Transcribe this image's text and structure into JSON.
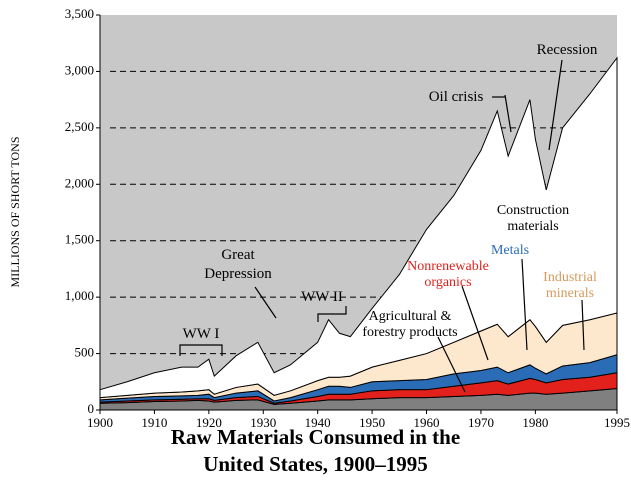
{
  "chart_data": {
    "type": "stacked_area",
    "title": [
      "Raw Materials Consumed in the",
      "United States, 1900–1995"
    ],
    "y_label": "MILLIONS OF SHORT TONS",
    "x": [
      1900,
      1905,
      1910,
      1915,
      1918,
      1920,
      1921,
      1925,
      1929,
      1932,
      1935,
      1940,
      1942,
      1944,
      1946,
      1950,
      1955,
      1960,
      1965,
      1970,
      1973,
      1975,
      1979,
      1980,
      1982,
      1985,
      1990,
      1995
    ],
    "series": [
      {
        "name": "Agricultural & forestry products",
        "color": "#808080",
        "values": [
          60,
          65,
          75,
          80,
          85,
          80,
          70,
          85,
          90,
          50,
          60,
          80,
          90,
          90,
          90,
          100,
          110,
          110,
          120,
          130,
          140,
          130,
          150,
          150,
          140,
          150,
          170,
          190
        ]
      },
      {
        "name": "Nonrenewable organics",
        "color": "#e3211c",
        "values": [
          10,
          15,
          15,
          15,
          15,
          20,
          15,
          25,
          30,
          10,
          20,
          40,
          50,
          50,
          50,
          70,
          70,
          70,
          90,
          110,
          120,
          100,
          130,
          120,
          100,
          120,
          120,
          140
        ]
      },
      {
        "name": "Metals",
        "color": "#2b6cb6",
        "values": [
          20,
          25,
          30,
          30,
          30,
          40,
          25,
          40,
          50,
          20,
          30,
          60,
          70,
          70,
          60,
          80,
          80,
          90,
          110,
          110,
          120,
          100,
          120,
          100,
          80,
          120,
          130,
          160
        ]
      },
      {
        "name": "Industrial minerals",
        "color": "#fde8cd",
        "values": [
          20,
          25,
          30,
          35,
          40,
          40,
          30,
          50,
          60,
          50,
          60,
          80,
          80,
          80,
          100,
          130,
          180,
          230,
          280,
          350,
          380,
          320,
          400,
          370,
          280,
          360,
          380,
          370
        ]
      },
      {
        "name": "Construction materials",
        "color": "#ffffff",
        "values": [
          70,
          120,
          180,
          220,
          210,
          270,
          160,
          280,
          370,
          200,
          230,
          340,
          510,
          390,
          350,
          520,
          760,
          1100,
          1300,
          1600,
          1890,
          1600,
          1950,
          1660,
          1350,
          1750,
          2000,
          2260
        ]
      }
    ],
    "annotations": [
      "Recession",
      "Oil crisis",
      "Great Depression",
      "WW I",
      "WW II"
    ],
    "xlim": [
      1900,
      1995
    ],
    "xticks": [
      1900,
      1910,
      1920,
      1930,
      1940,
      1950,
      1960,
      1970,
      1980,
      1995
    ],
    "ylim": [
      0,
      3500
    ],
    "yticks": [
      0,
      500,
      {
        "value": 1000,
        "label": "1,000"
      },
      {
        "value": 1500,
        "label": "1,500"
      },
      {
        "value": 2000,
        "label": "2,000"
      },
      {
        "value": 2500,
        "label": "2,500"
      },
      {
        "value": 3000,
        "label": "3,000"
      },
      {
        "value": 3500,
        "label": "3,500"
      }
    ],
    "grid": true,
    "background": "#c8c8c8"
  }
}
